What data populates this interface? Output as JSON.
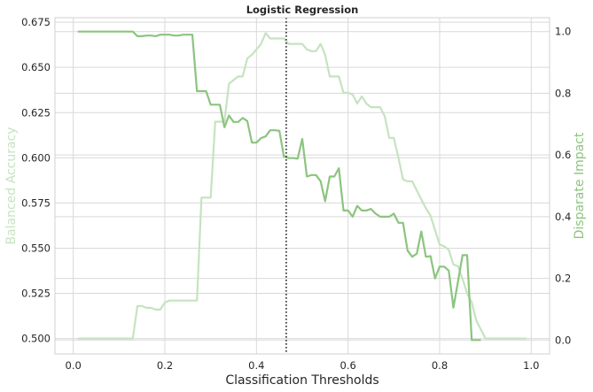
{
  "chart_data": {
    "type": "line",
    "title": "Logistic Regression",
    "xlabel": "Classification Thresholds",
    "ylabel_left": "Balanced Accuracy",
    "ylabel_right": "Disparate Impact",
    "xlim": [
      -0.04,
      1.04
    ],
    "ylim_left": [
      0.4915,
      0.6775
    ],
    "ylim_right": [
      -0.045,
      1.045
    ],
    "x_ticks": [
      "0.0",
      "0.2",
      "0.4",
      "0.6",
      "0.8",
      "1.0"
    ],
    "y_left_ticks": [
      "0.500",
      "0.525",
      "0.550",
      "0.575",
      "0.600",
      "0.625",
      "0.650",
      "0.675"
    ],
    "y_right_ticks": [
      "0.0",
      "0.2",
      "0.4",
      "0.6",
      "0.8",
      "1.0"
    ],
    "grid": true,
    "optimal_threshold": 0.465,
    "colors": {
      "balanced_accuracy": "#c6e3c0",
      "disparate_impact": "#8cc47f",
      "threshold_line": "#262626",
      "grid": "#d9d9d9",
      "spine": "#d0d0d0"
    },
    "series": [
      {
        "axis": "left",
        "x": [
          0.01,
          0.02,
          0.03,
          0.04,
          0.05,
          0.06,
          0.07,
          0.08,
          0.09,
          0.1,
          0.11,
          0.12,
          0.13,
          0.13,
          0.14,
          0.15,
          0.16,
          0.17,
          0.18,
          0.19,
          0.2,
          0.21,
          0.22,
          0.23,
          0.24,
          0.25,
          0.26,
          0.27,
          0.28,
          0.29,
          0.3,
          0.31,
          0.32,
          0.33,
          0.34,
          0.35,
          0.36,
          0.37,
          0.38,
          0.39,
          0.4,
          0.41,
          0.42,
          0.43,
          0.44,
          0.45,
          0.46,
          0.47,
          0.48,
          0.49,
          0.5,
          0.51,
          0.52,
          0.53,
          0.54,
          0.55,
          0.56,
          0.57,
          0.58,
          0.59,
          0.6,
          0.61,
          0.62,
          0.63,
          0.64,
          0.65,
          0.66,
          0.67,
          0.68,
          0.69,
          0.7,
          0.71,
          0.72,
          0.73,
          0.74,
          0.75,
          0.76,
          0.77,
          0.78,
          0.79,
          0.8,
          0.81,
          0.82,
          0.83,
          0.84,
          0.85,
          0.86,
          0.87,
          0.88,
          0.89,
          0.9,
          0.91,
          0.92,
          0.93,
          0.94,
          0.95,
          0.96,
          0.97,
          0.98,
          0.99
        ],
        "values": [
          0.5,
          0.5,
          0.5,
          0.5,
          0.5,
          0.5,
          0.5,
          0.5,
          0.5,
          0.5,
          0.5,
          0.5,
          0.5,
          0.5,
          0.518,
          0.518,
          0.517,
          0.517,
          0.516,
          0.516,
          0.52,
          0.521,
          0.521,
          0.521,
          0.521,
          0.521,
          0.521,
          0.521,
          0.578,
          0.578,
          0.578,
          0.62,
          0.62,
          0.62,
          0.641,
          0.643,
          0.645,
          0.645,
          0.655,
          0.657,
          0.66,
          0.663,
          0.669,
          0.666,
          0.666,
          0.666,
          0.666,
          0.663,
          0.663,
          0.663,
          0.663,
          0.66,
          0.659,
          0.659,
          0.663,
          0.657,
          0.645,
          0.645,
          0.645,
          0.636,
          0.636,
          0.635,
          0.63,
          0.634,
          0.63,
          0.628,
          0.628,
          0.628,
          0.623,
          0.611,
          0.611,
          0.6,
          0.588,
          0.587,
          0.587,
          0.582,
          0.577,
          0.572,
          0.568,
          0.56,
          0.552,
          0.551,
          0.549,
          0.541,
          0.54,
          0.533,
          0.525,
          0.52,
          0.51,
          0.505,
          0.5,
          0.5,
          0.5,
          0.5,
          0.5,
          0.5,
          0.5,
          0.5,
          0.5,
          0.5
        ]
      },
      {
        "axis": "right",
        "x": [
          0.01,
          0.02,
          0.03,
          0.04,
          0.05,
          0.06,
          0.07,
          0.08,
          0.09,
          0.1,
          0.11,
          0.12,
          0.13,
          0.14,
          0.15,
          0.16,
          0.17,
          0.18,
          0.19,
          0.2,
          0.21,
          0.22,
          0.23,
          0.24,
          0.25,
          0.26,
          0.27,
          0.28,
          0.29,
          0.3,
          0.31,
          0.32,
          0.33,
          0.34,
          0.35,
          0.36,
          0.37,
          0.38,
          0.39,
          0.4,
          0.41,
          0.42,
          0.43,
          0.44,
          0.45,
          0.46,
          0.47,
          0.48,
          0.49,
          0.5,
          0.51,
          0.52,
          0.53,
          0.54,
          0.55,
          0.56,
          0.57,
          0.58,
          0.59,
          0.6,
          0.61,
          0.62,
          0.63,
          0.64,
          0.65,
          0.66,
          0.67,
          0.68,
          0.69,
          0.7,
          0.71,
          0.72,
          0.73,
          0.74,
          0.75,
          0.76,
          0.77,
          0.78,
          0.79,
          0.8,
          0.81,
          0.82,
          0.83,
          0.84,
          0.85,
          0.86,
          0.87,
          0.88,
          0.89
        ],
        "values": [
          1.0,
          1.0,
          1.0,
          1.0,
          1.0,
          1.0,
          1.0,
          1.0,
          1.0,
          1.0,
          1.0,
          1.0,
          1.0,
          0.985,
          0.985,
          0.987,
          0.987,
          0.985,
          0.99,
          0.99,
          0.99,
          0.987,
          0.987,
          0.99,
          0.99,
          0.99,
          0.807,
          0.807,
          0.807,
          0.763,
          0.763,
          0.763,
          0.69,
          0.728,
          0.707,
          0.707,
          0.72,
          0.71,
          0.64,
          0.64,
          0.655,
          0.66,
          0.68,
          0.68,
          0.678,
          0.595,
          0.59,
          0.59,
          0.588,
          0.652,
          0.53,
          0.535,
          0.535,
          0.515,
          0.45,
          0.53,
          0.53,
          0.557,
          0.42,
          0.42,
          0.4,
          0.435,
          0.42,
          0.42,
          0.425,
          0.41,
          0.4,
          0.4,
          0.4,
          0.41,
          0.38,
          0.38,
          0.29,
          0.27,
          0.28,
          0.352,
          0.27,
          0.272,
          0.2,
          0.238,
          0.238,
          0.225,
          0.105,
          0.19,
          0.275,
          0.275,
          0.0,
          0.0,
          0.0
        ]
      }
    ]
  }
}
